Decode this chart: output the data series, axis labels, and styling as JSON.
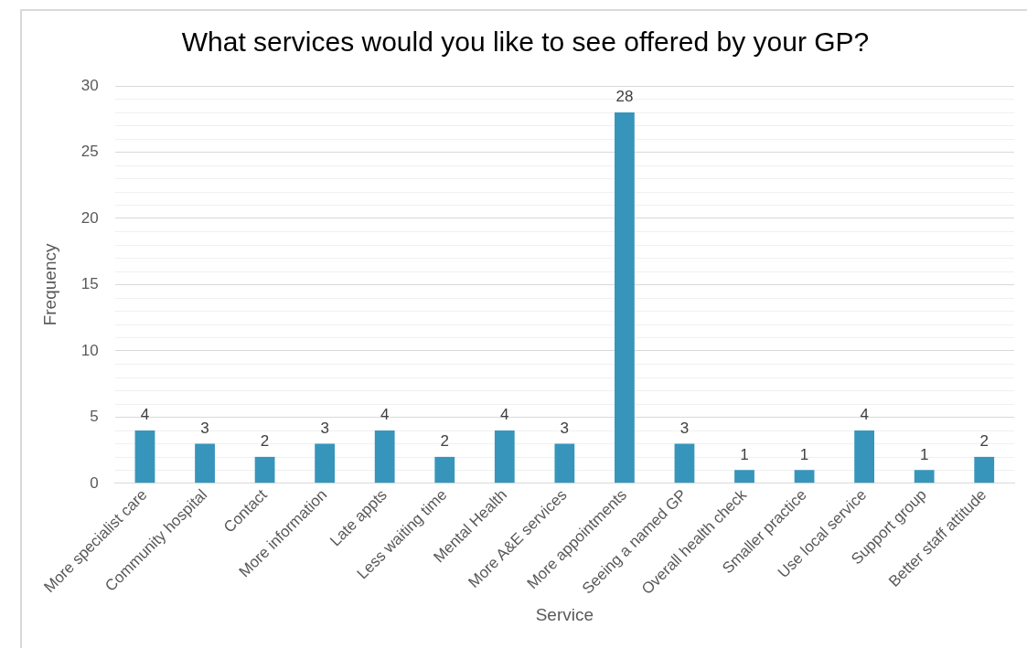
{
  "chart_data": {
    "type": "bar",
    "title": "What services would you like to see offered by your GP?",
    "xlabel": "Service",
    "ylabel": "Frequency",
    "categories": [
      "More specialist care",
      "Community hospital",
      "Contact",
      "More information",
      "Late appts",
      "Less waiting time",
      "Mental Health",
      "More A&E services",
      "More appointments",
      "Seeing a named GP",
      "Overall health check",
      "Smaller practice",
      "Use local service",
      "Support group",
      "Better staff attitude"
    ],
    "values": [
      4,
      3,
      2,
      3,
      4,
      2,
      4,
      3,
      28,
      3,
      1,
      1,
      4,
      1,
      2
    ],
    "color": "#3795bb",
    "ylim": [
      0,
      30
    ],
    "yticks": [
      0,
      5,
      10,
      15,
      20,
      25,
      30
    ],
    "grid": "y",
    "data_labels": true,
    "legend": false
  }
}
